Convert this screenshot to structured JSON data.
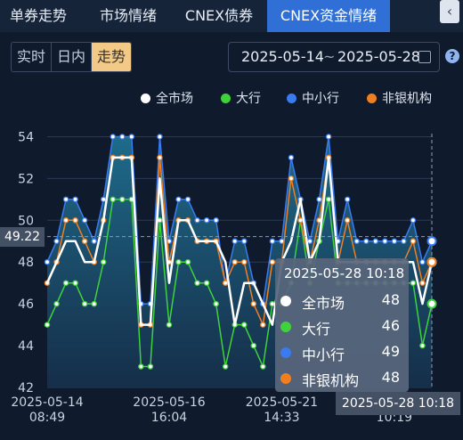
{
  "tabs": [
    {
      "label": "单券走势",
      "active": false
    },
    {
      "label": "市场情绪",
      "active": false
    },
    {
      "label": "CNEX债券",
      "active": false
    },
    {
      "label": "CNEX资金情绪",
      "active": true
    }
  ],
  "collapse_icon": "chevron-left-icon",
  "period": {
    "options": [
      "实时",
      "日内",
      "走势"
    ],
    "selected": "走势"
  },
  "date_range": {
    "start": "2025-05-14",
    "separator": "~",
    "end": "2025-05-28"
  },
  "colors": {
    "all": "#ffffff",
    "big": "#3fd23a",
    "small": "#3a7bf0",
    "nonbank": "#f07f22",
    "accent": "#2f6fd6"
  },
  "tooltip": {
    "title": "2025-05-28 10:18",
    "rows": [
      {
        "name": "全市场",
        "value": "48"
      },
      {
        "name": "大行",
        "value": "46"
      },
      {
        "name": "中小行",
        "value": "49"
      },
      {
        "name": "非银机构",
        "value": "48"
      }
    ]
  },
  "crosshair": {
    "y_value": "49.22",
    "x_value": "2025-05-28 10:18"
  },
  "chart_data": {
    "type": "line",
    "ylim": [
      42,
      55
    ],
    "yticks": [
      "54",
      "52",
      "50",
      "48",
      "46",
      "44",
      "42"
    ],
    "xticks": [
      {
        "date": "2025-05-14",
        "time": "08:49"
      },
      {
        "date": "2025-05-16",
        "time": "16:04"
      },
      {
        "date": "2025-05-21",
        "time": "14:33"
      },
      {
        "date": "2025-05-2",
        "time": "10:19"
      }
    ],
    "legend_position": "top-right",
    "series": [
      {
        "name": "全市场",
        "key": "all",
        "values": [
          47,
          48,
          49,
          49,
          48,
          48,
          50,
          53,
          53,
          53,
          45,
          45,
          52,
          47,
          50,
          50,
          49,
          49,
          49,
          48,
          45,
          47,
          47,
          46,
          45,
          48,
          49,
          51,
          48,
          49,
          53,
          48,
          48,
          48,
          48,
          48,
          48,
          48,
          48,
          48,
          46,
          48
        ]
      },
      {
        "name": "大行",
        "key": "big",
        "values": [
          45,
          46,
          47,
          47,
          46,
          46,
          48,
          51,
          51,
          51,
          43,
          43,
          50,
          45,
          48,
          48,
          47,
          47,
          46,
          43,
          45,
          45,
          44,
          43,
          46,
          46,
          47,
          50,
          47,
          49,
          51,
          47,
          47,
          47,
          47,
          47,
          47,
          47,
          47,
          47,
          44,
          46
        ]
      },
      {
        "name": "中小行",
        "key": "small",
        "values": [
          48,
          49,
          51,
          51,
          50,
          49,
          51,
          54,
          54,
          54,
          46,
          46,
          54,
          49,
          51,
          51,
          50,
          50,
          50,
          47,
          49,
          49,
          47,
          46,
          49,
          49,
          53,
          51,
          49,
          51,
          54,
          49,
          51,
          49,
          49,
          49,
          49,
          49,
          49,
          50,
          48,
          49
        ]
      },
      {
        "name": "非银机构",
        "key": "nonbank",
        "values": [
          47,
          48,
          50,
          50,
          49,
          48,
          50,
          53,
          53,
          53,
          45,
          45,
          53,
          48,
          50,
          50,
          49,
          49,
          49,
          47,
          48,
          48,
          46,
          45,
          48,
          48,
          52,
          50,
          48,
          50,
          53,
          48,
          50,
          48,
          48,
          48,
          48,
          48,
          48,
          49,
          47,
          48
        ]
      }
    ]
  }
}
